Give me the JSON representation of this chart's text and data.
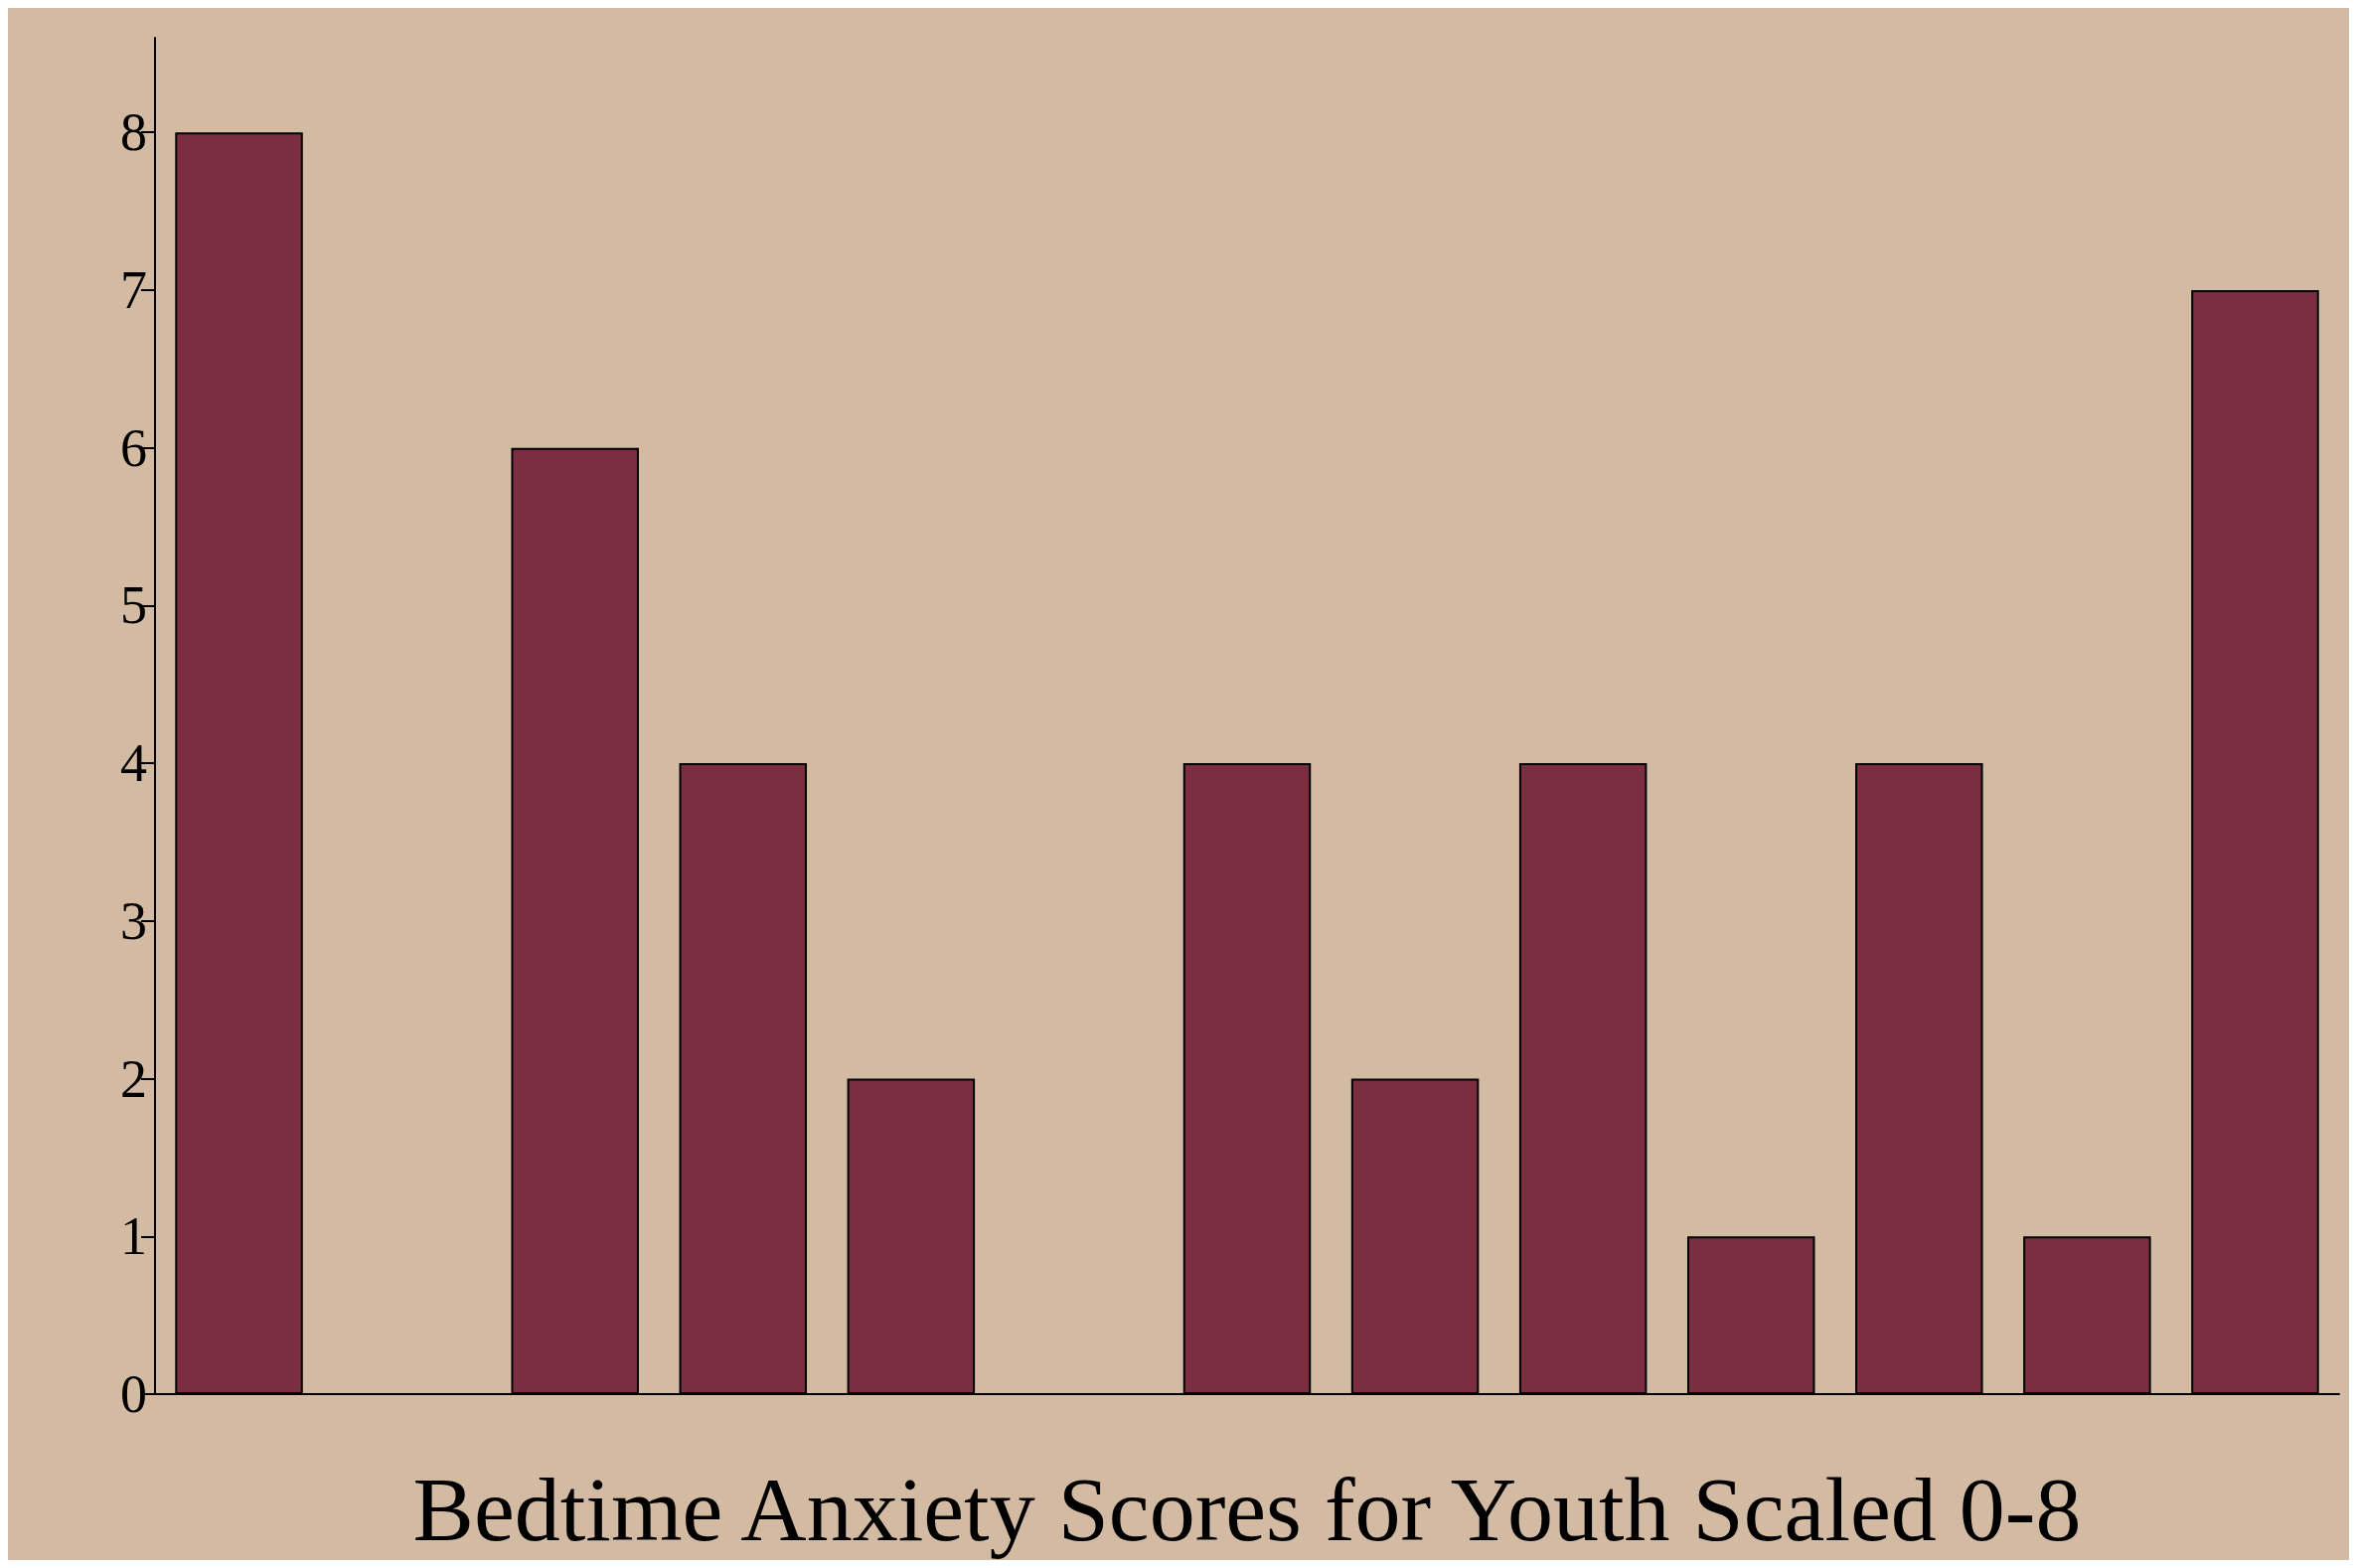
{
  "chart_data": {
    "type": "bar",
    "xlabel": "Bedtime Anxiety Scores for Youth Scaled 0-8",
    "categories": [
      null,
      null,
      null,
      null,
      null,
      null,
      null,
      null,
      null,
      null,
      null,
      null,
      null
    ],
    "values": [
      8,
      0,
      6,
      4,
      2,
      0,
      4,
      2,
      4,
      1,
      4,
      1,
      7
    ],
    "color": "#7a2e40",
    "ylim": [
      0,
      8.6
    ],
    "yticks": [
      0,
      1,
      2,
      3,
      4,
      5,
      6,
      7,
      8
    ],
    "grid": false,
    "tick_labels": "y"
  }
}
